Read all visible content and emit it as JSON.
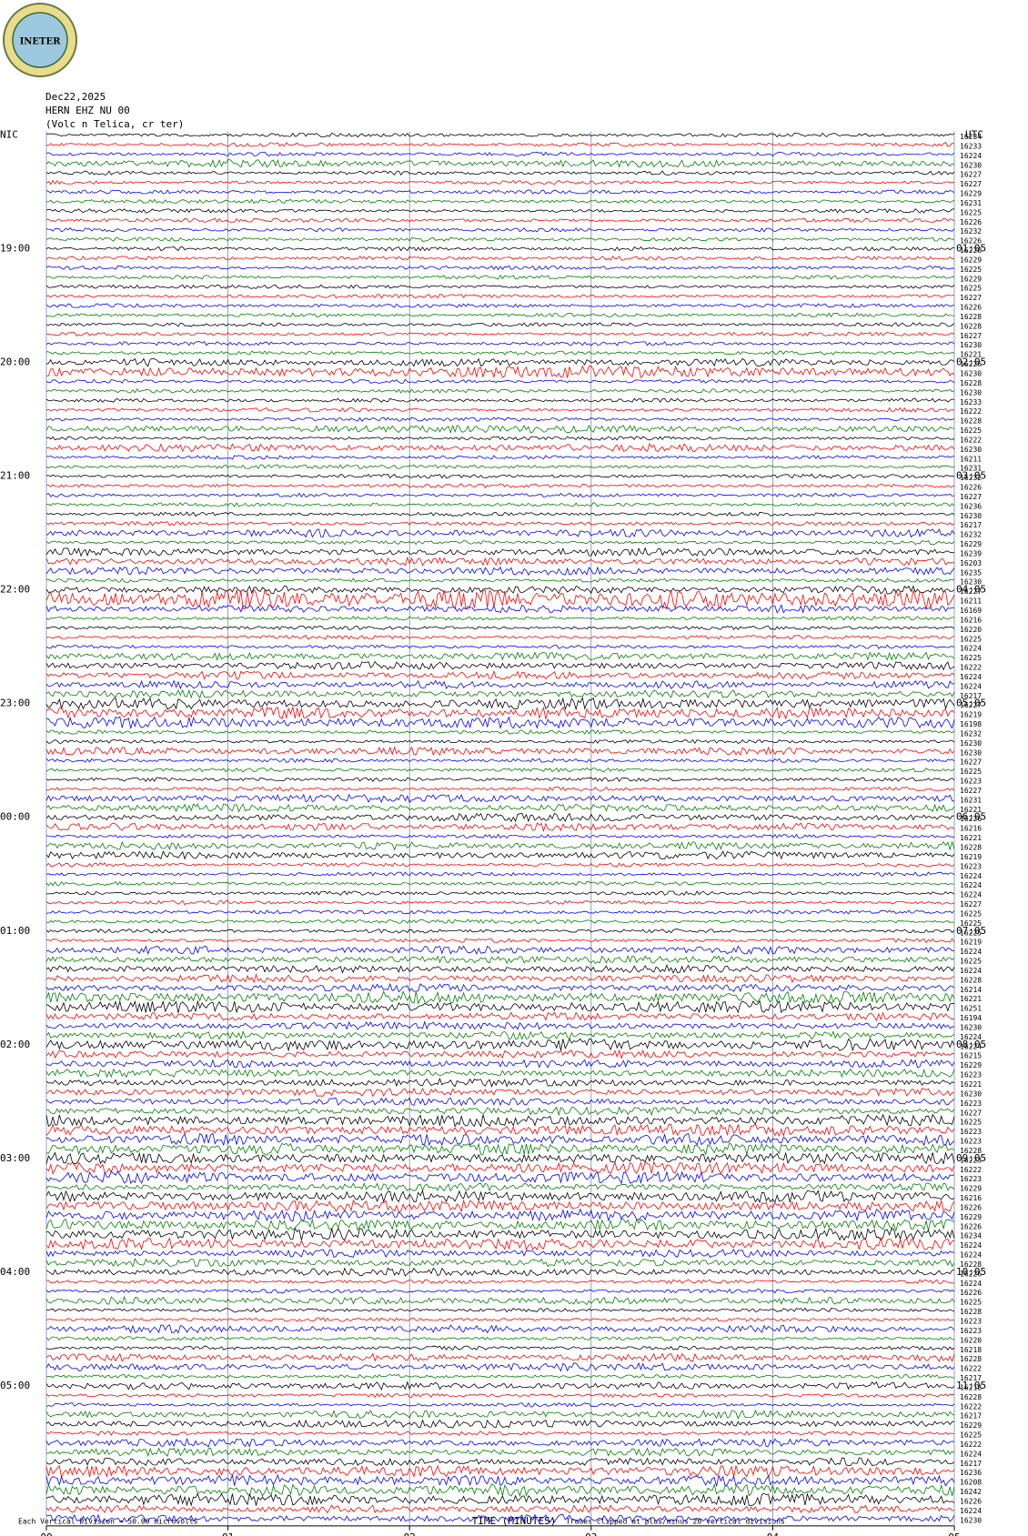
{
  "chart_data": {
    "type": "helicorder",
    "logo": "INETER",
    "title": "Dec22,2025",
    "subtitle": "HERN EHZ NU 00",
    "station": "(Volc n Telica, cr ter)",
    "xlabel": "TIME (MINUTES)",
    "scale_note": "Each Vertical Division =   50.00 microvolts",
    "clip_note": "Traces clipped at plus/minus 20 vertical divisions",
    "xlim": [
      0,
      5
    ],
    "xticks": [
      {
        "value": 0,
        "label": "00"
      },
      {
        "value": 1,
        "label": "01"
      },
      {
        "value": 2,
        "label": "02"
      },
      {
        "value": 3,
        "label": "03"
      },
      {
        "value": 4,
        "label": "04"
      },
      {
        "value": 5,
        "label": "05"
      }
    ],
    "colors": [
      "#000000",
      "#ff0000",
      "#0000ff",
      "#008000"
    ],
    "rows": [
      {
        "label": "16234",
        "amplitude": 1,
        "left": "NIC",
        "right": "UTC"
      },
      {
        "label": "16233",
        "amplitude": 1
      },
      {
        "label": "16224",
        "amplitude": 1
      },
      {
        "label": "16230",
        "amplitude": 2
      },
      {
        "label": "16227",
        "amplitude": 1
      },
      {
        "label": "16227",
        "amplitude": 1
      },
      {
        "label": "16229",
        "amplitude": 1
      },
      {
        "label": "16231",
        "amplitude": 1
      },
      {
        "label": "16225",
        "amplitude": 1
      },
      {
        "label": "16226",
        "amplitude": 1
      },
      {
        "label": "16232",
        "amplitude": 1
      },
      {
        "label": "16226",
        "amplitude": 1
      },
      {
        "label": "16220",
        "amplitude": 1,
        "left": "19:00",
        "right": "01:05"
      },
      {
        "label": "16229",
        "amplitude": 1
      },
      {
        "label": "16225",
        "amplitude": 1
      },
      {
        "label": "16229",
        "amplitude": 1
      },
      {
        "label": "16225",
        "amplitude": 1
      },
      {
        "label": "16227",
        "amplitude": 1
      },
      {
        "label": "16226",
        "amplitude": 1
      },
      {
        "label": "16228",
        "amplitude": 1
      },
      {
        "label": "16228",
        "amplitude": 1
      },
      {
        "label": "16227",
        "amplitude": 1
      },
      {
        "label": "16230",
        "amplitude": 1
      },
      {
        "label": "16221",
        "amplitude": 1
      },
      {
        "label": "16226",
        "amplitude": 2,
        "left": "20:00",
        "right": "02:05"
      },
      {
        "label": "16230",
        "amplitude": 3
      },
      {
        "label": "16228",
        "amplitude": 1
      },
      {
        "label": "16230",
        "amplitude": 1
      },
      {
        "label": "16233",
        "amplitude": 1
      },
      {
        "label": "16222",
        "amplitude": 1
      },
      {
        "label": "16228",
        "amplitude": 1
      },
      {
        "label": "16225",
        "amplitude": 2
      },
      {
        "label": "16222",
        "amplitude": 1
      },
      {
        "label": "16230",
        "amplitude": 2
      },
      {
        "label": "16211",
        "amplitude": 1
      },
      {
        "label": "16231",
        "amplitude": 1
      },
      {
        "label": "16232",
        "amplitude": 1,
        "left": "21:00",
        "right": "03:05"
      },
      {
        "label": "16226",
        "amplitude": 1
      },
      {
        "label": "16227",
        "amplitude": 1
      },
      {
        "label": "16236",
        "amplitude": 1
      },
      {
        "label": "16230",
        "amplitude": 1
      },
      {
        "label": "16217",
        "amplitude": 1
      },
      {
        "label": "16232",
        "amplitude": 2
      },
      {
        "label": "16229",
        "amplitude": 1
      },
      {
        "label": "16239",
        "amplitude": 2
      },
      {
        "label": "16203",
        "amplitude": 2
      },
      {
        "label": "16235",
        "amplitude": 2
      },
      {
        "label": "16230",
        "amplitude": 1
      },
      {
        "label": "16227",
        "amplitude": 2,
        "left": "22:00",
        "right": "04:05"
      },
      {
        "label": "16211",
        "amplitude": 5
      },
      {
        "label": "16169",
        "amplitude": 2
      },
      {
        "label": "16216",
        "amplitude": 1
      },
      {
        "label": "16220",
        "amplitude": 1
      },
      {
        "label": "16225",
        "amplitude": 1
      },
      {
        "label": "16224",
        "amplitude": 1
      },
      {
        "label": "16225",
        "amplitude": 2
      },
      {
        "label": "16222",
        "amplitude": 2
      },
      {
        "label": "16224",
        "amplitude": 2
      },
      {
        "label": "16224",
        "amplitude": 2
      },
      {
        "label": "16217",
        "amplitude": 2
      },
      {
        "label": "16227",
        "amplitude": 3,
        "left": "23:00",
        "right": "05:05"
      },
      {
        "label": "16219",
        "amplitude": 3
      },
      {
        "label": "16198",
        "amplitude": 3
      },
      {
        "label": "16232",
        "amplitude": 1
      },
      {
        "label": "16230",
        "amplitude": 1
      },
      {
        "label": "16230",
        "amplitude": 2
      },
      {
        "label": "16227",
        "amplitude": 1
      },
      {
        "label": "16225",
        "amplitude": 1
      },
      {
        "label": "16223",
        "amplitude": 1
      },
      {
        "label": "16227",
        "amplitude": 1
      },
      {
        "label": "16231",
        "amplitude": 2
      },
      {
        "label": "16221",
        "amplitude": 2
      },
      {
        "label": "16226",
        "amplitude": 2,
        "left": "00:00",
        "right": "06:05"
      },
      {
        "label": "16216",
        "amplitude": 2
      },
      {
        "label": "16221",
        "amplitude": 1
      },
      {
        "label": "16228",
        "amplitude": 2
      },
      {
        "label": "16219",
        "amplitude": 2
      },
      {
        "label": "16223",
        "amplitude": 1
      },
      {
        "label": "16224",
        "amplitude": 1
      },
      {
        "label": "16224",
        "amplitude": 1
      },
      {
        "label": "16224",
        "amplitude": 1
      },
      {
        "label": "16227",
        "amplitude": 1
      },
      {
        "label": "16225",
        "amplitude": 1
      },
      {
        "label": "16225",
        "amplitude": 1
      },
      {
        "label": "16225",
        "amplitude": 1,
        "left": "01:00",
        "right": "07:05"
      },
      {
        "label": "16219",
        "amplitude": 1
      },
      {
        "label": "16224",
        "amplitude": 2
      },
      {
        "label": "16225",
        "amplitude": 2
      },
      {
        "label": "16224",
        "amplitude": 2
      },
      {
        "label": "16228",
        "amplitude": 2
      },
      {
        "label": "16214",
        "amplitude": 2
      },
      {
        "label": "16221",
        "amplitude": 3
      },
      {
        "label": "16251",
        "amplitude": 3
      },
      {
        "label": "16194",
        "amplitude": 2
      },
      {
        "label": "16230",
        "amplitude": 2
      },
      {
        "label": "16224",
        "amplitude": 2
      },
      {
        "label": "16224",
        "amplitude": 3,
        "left": "02:00",
        "right": "08:05"
      },
      {
        "label": "16215",
        "amplitude": 2
      },
      {
        "label": "16229",
        "amplitude": 2
      },
      {
        "label": "16223",
        "amplitude": 2
      },
      {
        "label": "16221",
        "amplitude": 2
      },
      {
        "label": "16230",
        "amplitude": 2
      },
      {
        "label": "16223",
        "amplitude": 2
      },
      {
        "label": "16227",
        "amplitude": 2
      },
      {
        "label": "16225",
        "amplitude": 3
      },
      {
        "label": "16223",
        "amplitude": 3
      },
      {
        "label": "16223",
        "amplitude": 3
      },
      {
        "label": "16228",
        "amplitude": 3
      },
      {
        "label": "16223",
        "amplitude": 3,
        "left": "03:00",
        "right": "09:05"
      },
      {
        "label": "16222",
        "amplitude": 3
      },
      {
        "label": "16223",
        "amplitude": 3
      },
      {
        "label": "16229",
        "amplitude": 2
      },
      {
        "label": "16216",
        "amplitude": 3
      },
      {
        "label": "16226",
        "amplitude": 3
      },
      {
        "label": "16229",
        "amplitude": 3
      },
      {
        "label": "16226",
        "amplitude": 3
      },
      {
        "label": "16234",
        "amplitude": 3
      },
      {
        "label": "16224",
        "amplitude": 3
      },
      {
        "label": "16224",
        "amplitude": 2
      },
      {
        "label": "16228",
        "amplitude": 2
      },
      {
        "label": "16226",
        "amplitude": 2,
        "left": "04:00",
        "right": "10:05"
      },
      {
        "label": "16224",
        "amplitude": 1
      },
      {
        "label": "16226",
        "amplitude": 1
      },
      {
        "label": "16225",
        "amplitude": 2
      },
      {
        "label": "16228",
        "amplitude": 1
      },
      {
        "label": "16223",
        "amplitude": 1
      },
      {
        "label": "16223",
        "amplitude": 2
      },
      {
        "label": "16220",
        "amplitude": 1
      },
      {
        "label": "16218",
        "amplitude": 1
      },
      {
        "label": "16228",
        "amplitude": 2
      },
      {
        "label": "16222",
        "amplitude": 2
      },
      {
        "label": "16217",
        "amplitude": 1
      },
      {
        "label": "16218",
        "amplitude": 2,
        "left": "05:00",
        "right": "11:05"
      },
      {
        "label": "16228",
        "amplitude": 1
      },
      {
        "label": "16222",
        "amplitude": 1
      },
      {
        "label": "16217",
        "amplitude": 2
      },
      {
        "label": "16229",
        "amplitude": 2
      },
      {
        "label": "16225",
        "amplitude": 1
      },
      {
        "label": "16222",
        "amplitude": 2
      },
      {
        "label": "16224",
        "amplitude": 2
      },
      {
        "label": "16217",
        "amplitude": 2
      },
      {
        "label": "16236",
        "amplitude": 3
      },
      {
        "label": "16208",
        "amplitude": 3
      },
      {
        "label": "16242",
        "amplitude": 3
      },
      {
        "label": "16226",
        "amplitude": 3
      },
      {
        "label": "16224",
        "amplitude": 2
      },
      {
        "label": "16230",
        "amplitude": 2
      }
    ]
  }
}
